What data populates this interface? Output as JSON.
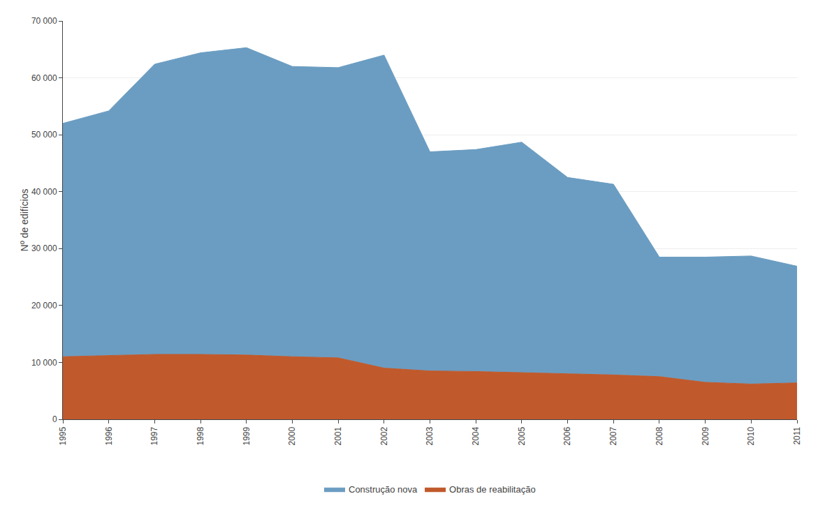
{
  "chart_data": {
    "type": "area",
    "stacked": true,
    "x": [
      1995,
      1996,
      1997,
      1998,
      1999,
      2000,
      2001,
      2002,
      2003,
      2004,
      2005,
      2006,
      2007,
      2008,
      2009,
      2010,
      2011
    ],
    "series": [
      {
        "name": "Obras de reabilitação",
        "color": "#c0592b",
        "values": [
          11000,
          11200,
          11400,
          11400,
          11300,
          11000,
          10800,
          9000,
          8500,
          8400,
          8200,
          8000,
          7800,
          7500,
          6500,
          6200,
          6400
        ]
      },
      {
        "name": "Construção nova",
        "color": "#6b9dc2",
        "values": [
          41000,
          43000,
          51000,
          53000,
          54000,
          51000,
          51000,
          55000,
          38500,
          39000,
          40500,
          34500,
          33500,
          21000,
          22000,
          22500,
          20500
        ]
      }
    ],
    "xlim": [
      1995,
      2011
    ],
    "xticks": [
      1995,
      1996,
      1997,
      1998,
      1999,
      2000,
      2001,
      2002,
      2003,
      2004,
      2005,
      2006,
      2007,
      2008,
      2009,
      2010,
      2011
    ],
    "ylim": [
      0,
      70000
    ],
    "yticks": [
      0,
      {
        "value": 10000,
        "label": "10 000"
      },
      {
        "value": 20000,
        "label": "20 000"
      },
      {
        "value": 30000,
        "label": "30 000"
      },
      {
        "value": 40000,
        "label": "40 000"
      },
      {
        "value": 50000,
        "label": "50 000"
      },
      {
        "value": 60000,
        "label": "60 000"
      },
      {
        "value": 70000,
        "label": "70 000"
      }
    ],
    "y_label": "Nº de edifícios",
    "grid": true,
    "legend": "bottom"
  }
}
